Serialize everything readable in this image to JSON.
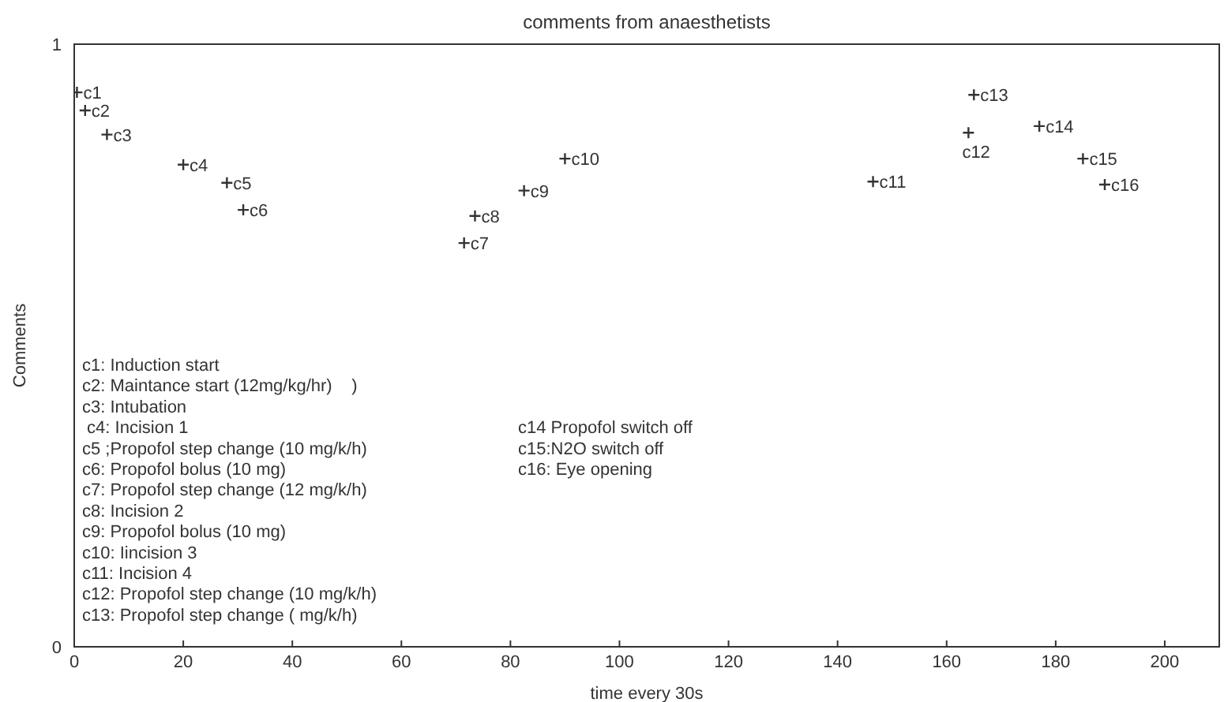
{
  "chart_data": {
    "type": "scatter",
    "title": "comments from anaesthetists",
    "xlabel": "time every 30s",
    "ylabel": "Comments",
    "x": [
      0.5,
      2,
      6,
      20,
      28,
      31,
      71.5,
      73.5,
      82.5,
      90,
      146.5,
      164,
      165,
      177,
      185,
      189
    ],
    "values": [
      0.92,
      0.89,
      0.85,
      0.8,
      0.77,
      0.725,
      0.67,
      0.715,
      0.757,
      0.81,
      0.772,
      0.853,
      0.916,
      0.864,
      0.81,
      0.767
    ],
    "value_labels": [
      "c1",
      "c2",
      "c3",
      "c4",
      "c5",
      "c6",
      "c7",
      "c8",
      "c9",
      "c10",
      "c11",
      "c12",
      "c13",
      "c14",
      "c15",
      "c16"
    ],
    "color": "#333333",
    "marker": "cross",
    "grid": false,
    "legend": false,
    "xlim": [
      0,
      210
    ],
    "xticks": [
      0,
      20,
      40,
      60,
      80,
      100,
      120,
      140,
      160,
      180,
      200
    ],
    "ylim": [
      0,
      1
    ],
    "yticks": [
      0,
      1
    ],
    "annotations": [
      "c1: Induction start",
      "c2: Maintance start (12mg/kg/hr)    )",
      "c3: Intubation",
      " c4: Incision 1",
      "c5 ;Propofol step change (10 mg/k/h)",
      "c6: Propofol bolus (10 mg)",
      "c7: Propofol step change (12 mg/k/h)",
      "c8: Incision 2",
      "c9: Propofol bolus (10 mg)",
      "c10: Iincision 3",
      "c11: Incision 4",
      "c12: Propofol step change (10 mg/k/h)",
      "c13: Propofol step change ( mg/k/h)",
      "c14 Propofol switch off",
      "c15:N2O switch off",
      "c16: Eye opening"
    ]
  }
}
